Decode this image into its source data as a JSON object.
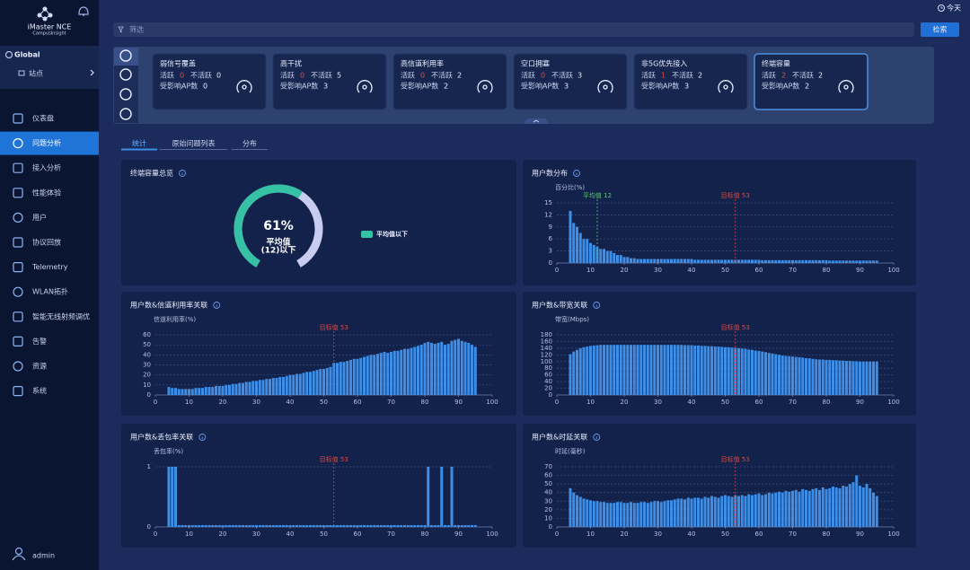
{
  "sidebar": {
    "brand": "iMaster NCE",
    "sub": "CampusInsight",
    "scope": "Global",
    "site": "站点",
    "menu": [
      "仪表盘",
      "问题分析",
      "接入分析",
      "性能体验",
      "用户",
      "协议回放",
      "Telemetry",
      "WLAN拓扑",
      "智能无线射频调优",
      "告警",
      "资源",
      "系统"
    ],
    "user": "admin"
  },
  "topbar": {
    "date": "今天",
    "filter": "筛选",
    "search": "检索"
  },
  "cards": [
    {
      "title": "弱信号覆盖",
      "active_label": "活跃",
      "active": 0,
      "inactive_label": "不活跃",
      "inactive": 0,
      "ap_label": "受影响AP数",
      "ap": 0
    },
    {
      "title": "高干扰",
      "active_label": "活跃",
      "active": 0,
      "inactive_label": "不活跃",
      "inactive": 5,
      "ap_label": "受影响AP数",
      "ap": 3
    },
    {
      "title": "高信道利用率",
      "active_label": "活跃",
      "active": 0,
      "inactive_label": "不活跃",
      "inactive": 2,
      "ap_label": "受影响AP数",
      "ap": 2
    },
    {
      "title": "空口拥塞",
      "active_label": "活跃",
      "active": 0,
      "inactive_label": "不活跃",
      "inactive": 3,
      "ap_label": "受影响AP数",
      "ap": 3
    },
    {
      "title": "非5G优先接入",
      "active_label": "活跃",
      "active": 1,
      "inactive_label": "不活跃",
      "inactive": 2,
      "ap_label": "受影响AP数",
      "ap": 3
    },
    {
      "title": "终端容量",
      "active_label": "活跃",
      "active": 2,
      "inactive_label": "不活跃",
      "inactive": 2,
      "ap_label": "受影响AP数",
      "ap": 2
    }
  ],
  "tabs": [
    "统计",
    "原始问题列表",
    "分布"
  ],
  "chart_data": [
    {
      "type": "donut",
      "title": "终端容量总览",
      "series": [
        {
          "name": "平均值以下",
          "color": "#35c2a4",
          "values": [
            61
          ],
          "value_labels": [
            "61%"
          ]
        }
      ],
      "annotations": [
        "平均值",
        "(12)以下"
      ]
    },
    {
      "type": "bar",
      "title": "用户数分布",
      "ylabel": "百分比(%)",
      "color": "#3d8ee6",
      "x": [
        4,
        5,
        6,
        7,
        8,
        9,
        10,
        11,
        12,
        13,
        14,
        15,
        16,
        17,
        18,
        19,
        20,
        21,
        22,
        23,
        24,
        25,
        26,
        27,
        28,
        29,
        30,
        31,
        32,
        33,
        34,
        35,
        36,
        37,
        38,
        39,
        40,
        41,
        42,
        43,
        44,
        45,
        46,
        47,
        48,
        49,
        50,
        51,
        52,
        53,
        54,
        55,
        56,
        57,
        58,
        59,
        60,
        61,
        62,
        63,
        64,
        65,
        66,
        67,
        68,
        69,
        70,
        71,
        72,
        73,
        74,
        75,
        76,
        77,
        78,
        79,
        80,
        81,
        82,
        83,
        84,
        85,
        86,
        87,
        88,
        89,
        90,
        91,
        92,
        93,
        94,
        95
      ],
      "values": [
        13,
        10,
        9,
        7.5,
        6,
        6,
        5,
        4.5,
        4,
        3.5,
        3.5,
        3,
        3,
        2.5,
        2,
        2,
        1.5,
        1.5,
        1.2,
        1.2,
        1,
        1,
        1,
        1,
        1,
        1,
        1,
        1,
        1,
        1,
        1,
        1,
        1,
        1,
        1,
        1,
        1,
        0.8,
        0.8,
        0.8,
        0.8,
        0.8,
        0.8,
        0.8,
        0.8,
        0.8,
        0.8,
        0.8,
        0.8,
        0.8,
        0.8,
        0.8,
        0.8,
        0.8,
        0.8,
        0.8,
        0.8,
        0.7,
        0.7,
        0.7,
        0.7,
        0.7,
        0.7,
        0.7,
        0.7,
        0.7,
        0.7,
        0.7,
        0.7,
        0.7,
        0.7,
        0.7,
        0.7,
        0.7,
        0.7,
        0.7,
        0.7,
        0.6,
        0.6,
        0.6,
        0.6,
        0.6,
        0.6,
        0.6,
        0.6,
        0.6,
        0.6,
        0.6,
        0.6,
        0.6,
        0.6,
        0.6
      ],
      "xlim": [
        0,
        100
      ],
      "xticks": [
        0,
        10,
        20,
        30,
        40,
        50,
        60,
        70,
        80,
        90,
        100
      ],
      "ylim": [
        0,
        15
      ],
      "yticks": [
        0,
        3,
        6,
        9,
        12,
        15
      ],
      "grid": true,
      "annotations": [
        {
          "x": 12,
          "text": "平均值 12",
          "color": "#5cc96b"
        },
        {
          "x": 53,
          "text": "目标值 53",
          "color": "#e0473e"
        }
      ]
    },
    {
      "type": "bar",
      "title": "用户数&信道利用率关联",
      "ylabel": "信道利用率(%)",
      "color": "#3d8ee6",
      "x": [
        4,
        5,
        6,
        7,
        8,
        9,
        10,
        11,
        12,
        13,
        14,
        15,
        16,
        17,
        18,
        19,
        20,
        21,
        22,
        23,
        24,
        25,
        26,
        27,
        28,
        29,
        30,
        31,
        32,
        33,
        34,
        35,
        36,
        37,
        38,
        39,
        40,
        41,
        42,
        43,
        44,
        45,
        46,
        47,
        48,
        49,
        50,
        51,
        52,
        53,
        54,
        55,
        56,
        57,
        58,
        59,
        60,
        61,
        62,
        63,
        64,
        65,
        66,
        67,
        68,
        69,
        70,
        71,
        72,
        73,
        74,
        75,
        76,
        77,
        78,
        79,
        80,
        81,
        82,
        83,
        84,
        85,
        86,
        87,
        88,
        89,
        90,
        91,
        92,
        93,
        94,
        95
      ],
      "values": [
        8,
        7,
        7,
        6,
        6,
        6,
        6,
        6,
        7,
        7,
        7,
        8,
        8,
        8,
        9,
        9,
        9,
        10,
        10,
        11,
        11,
        12,
        12,
        13,
        13,
        14,
        14,
        15,
        15,
        16,
        16,
        17,
        17,
        18,
        18,
        19,
        20,
        20,
        21,
        21,
        22,
        23,
        23,
        24,
        25,
        26,
        26,
        27,
        28,
        32,
        32,
        33,
        33,
        34,
        35,
        36,
        36,
        37,
        38,
        39,
        40,
        40,
        41,
        42,
        43,
        42,
        43,
        44,
        44,
        45,
        46,
        46,
        47,
        48,
        49,
        50,
        52,
        53,
        52,
        51,
        52,
        53,
        50,
        51,
        54,
        55,
        56,
        54,
        53,
        52,
        50,
        48
      ],
      "xlim": [
        0,
        100
      ],
      "xticks": [
        0,
        10,
        20,
        30,
        40,
        50,
        60,
        70,
        80,
        90,
        100
      ],
      "ylim": [
        0,
        60
      ],
      "yticks": [
        0,
        10,
        20,
        30,
        40,
        50,
        60
      ],
      "grid": true,
      "annotations": [
        {
          "x": 53,
          "text": "目标值 53",
          "color": "#e0473e"
        }
      ]
    },
    {
      "type": "bar",
      "title": "用户数&带宽关联",
      "ylabel": "带宽(Mbps)",
      "color": "#3d8ee6",
      "x": [
        4,
        5,
        6,
        7,
        8,
        9,
        10,
        11,
        12,
        13,
        14,
        15,
        16,
        17,
        18,
        19,
        20,
        21,
        22,
        23,
        24,
        25,
        26,
        27,
        28,
        29,
        30,
        31,
        32,
        33,
        34,
        35,
        36,
        37,
        38,
        39,
        40,
        41,
        42,
        43,
        44,
        45,
        46,
        47,
        48,
        49,
        50,
        51,
        52,
        53,
        54,
        55,
        56,
        57,
        58,
        59,
        60,
        61,
        62,
        63,
        64,
        65,
        66,
        67,
        68,
        69,
        70,
        71,
        72,
        73,
        74,
        75,
        76,
        77,
        78,
        79,
        80,
        81,
        82,
        83,
        84,
        85,
        86,
        87,
        88,
        89,
        90,
        91,
        92,
        93,
        94,
        95
      ],
      "values": [
        122,
        130,
        135,
        140,
        143,
        145,
        147,
        148,
        149,
        150,
        150,
        150,
        150,
        150,
        150,
        150,
        150,
        150,
        150,
        150,
        150,
        150,
        150,
        150,
        150,
        150,
        150,
        150,
        150,
        150,
        150,
        150,
        150,
        150,
        149,
        149,
        149,
        148,
        148,
        147,
        147,
        146,
        146,
        145,
        145,
        144,
        143,
        143,
        142,
        141,
        140,
        139,
        138,
        136,
        135,
        133,
        132,
        130,
        128,
        126,
        124,
        122,
        120,
        118,
        117,
        116,
        115,
        114,
        113,
        112,
        110,
        110,
        108,
        107,
        106,
        106,
        105,
        105,
        104,
        104,
        103,
        103,
        102,
        102,
        101,
        101,
        100,
        100,
        100,
        100,
        100,
        100
      ],
      "xlim": [
        0,
        100
      ],
      "xticks": [
        0,
        10,
        20,
        30,
        40,
        50,
        60,
        70,
        80,
        90,
        100
      ],
      "ylim": [
        0,
        180
      ],
      "yticks": [
        0,
        20,
        40,
        60,
        80,
        100,
        120,
        140,
        160,
        180
      ],
      "grid": true,
      "annotations": [
        {
          "x": 53,
          "text": "目标值 53",
          "color": "#e0473e"
        }
      ]
    },
    {
      "type": "bar",
      "title": "用户数&丢包率关联",
      "ylabel": "丢包率(%)",
      "color": "#3d8ee6",
      "x": [
        4,
        5,
        6,
        7,
        8,
        9,
        10,
        11,
        12,
        13,
        14,
        15,
        16,
        17,
        18,
        19,
        20,
        21,
        22,
        23,
        24,
        25,
        26,
        27,
        28,
        29,
        30,
        31,
        32,
        33,
        34,
        35,
        36,
        37,
        38,
        39,
        40,
        41,
        42,
        43,
        44,
        45,
        46,
        47,
        48,
        49,
        50,
        51,
        52,
        53,
        54,
        55,
        56,
        57,
        58,
        59,
        60,
        61,
        62,
        63,
        64,
        65,
        66,
        67,
        68,
        69,
        70,
        71,
        72,
        73,
        74,
        75,
        76,
        77,
        78,
        79,
        80,
        81,
        82,
        83,
        84,
        85,
        86,
        87,
        88,
        89,
        90,
        91,
        92,
        93,
        94,
        95
      ],
      "values": [
        1,
        1,
        1,
        0.03,
        0.03,
        0.03,
        0.03,
        0.03,
        0.03,
        0.03,
        0.03,
        0.03,
        0.03,
        0.03,
        0.03,
        0.03,
        0.03,
        0.03,
        0.03,
        0.03,
        0.03,
        0.03,
        0.03,
        0.03,
        0.03,
        0.03,
        0.03,
        0.03,
        0.03,
        0.03,
        0.03,
        0.03,
        0.03,
        0.03,
        0.03,
        0.03,
        0.03,
        0.03,
        0.03,
        0.03,
        0.03,
        0.03,
        0.03,
        0.03,
        0.03,
        0.03,
        0.03,
        0.03,
        0.03,
        0.03,
        0.03,
        0.03,
        0.03,
        0.03,
        0.03,
        0.03,
        0.03,
        0.03,
        0.03,
        0.03,
        0.03,
        0.03,
        0.03,
        0.03,
        0.03,
        0.03,
        0.03,
        0.03,
        0.03,
        0.03,
        0.03,
        0.03,
        0.03,
        0.03,
        0.03,
        0.03,
        0.03,
        1,
        0.03,
        0.03,
        0.03,
        1,
        0.03,
        0.03,
        1,
        0.03,
        0.03,
        0.03,
        0.03,
        0.03,
        0.03,
        0.03
      ],
      "xlim": [
        0,
        100
      ],
      "xticks": [
        0,
        10,
        20,
        30,
        40,
        50,
        60,
        70,
        80,
        90,
        100
      ],
      "ylim": [
        0,
        1
      ],
      "yticks": [
        0,
        1
      ],
      "grid": true,
      "annotations": [
        {
          "x": 53,
          "text": "目标值 53",
          "color": "#e0473e"
        }
      ]
    },
    {
      "type": "bar",
      "title": "用户数&时延关联",
      "ylabel": "时延(毫秒)",
      "color": "#3d8ee6",
      "x": [
        4,
        5,
        6,
        7,
        8,
        9,
        10,
        11,
        12,
        13,
        14,
        15,
        16,
        17,
        18,
        19,
        20,
        21,
        22,
        23,
        24,
        25,
        26,
        27,
        28,
        29,
        30,
        31,
        32,
        33,
        34,
        35,
        36,
        37,
        38,
        39,
        40,
        41,
        42,
        43,
        44,
        45,
        46,
        47,
        48,
        49,
        50,
        51,
        52,
        53,
        54,
        55,
        56,
        57,
        58,
        59,
        60,
        61,
        62,
        63,
        64,
        65,
        66,
        67,
        68,
        69,
        70,
        71,
        72,
        73,
        74,
        75,
        76,
        77,
        78,
        79,
        80,
        81,
        82,
        83,
        84,
        85,
        86,
        87,
        88,
        89,
        90,
        91,
        92,
        93,
        94,
        95
      ],
      "values": [
        45,
        40,
        37,
        35,
        33,
        32,
        31,
        30,
        30,
        29,
        29,
        28,
        28,
        28,
        29,
        29,
        28,
        28,
        29,
        28,
        28,
        29,
        29,
        28,
        29,
        30,
        30,
        29,
        30,
        31,
        31,
        32,
        33,
        33,
        32,
        34,
        33,
        34,
        34,
        33,
        35,
        34,
        36,
        35,
        34,
        36,
        37,
        36,
        35,
        37,
        36,
        37,
        36,
        38,
        37,
        38,
        39,
        37,
        38,
        40,
        39,
        40,
        41,
        40,
        42,
        41,
        42,
        43,
        41,
        44,
        43,
        42,
        44,
        45,
        43,
        46,
        44,
        45,
        47,
        46,
        45,
        48,
        47,
        50,
        52,
        60,
        48,
        46,
        50,
        45,
        40,
        36
      ],
      "xlim": [
        0,
        100
      ],
      "xticks": [
        0,
        10,
        20,
        30,
        40,
        50,
        60,
        70,
        80,
        90,
        100
      ],
      "ylim": [
        0,
        70
      ],
      "yticks": [
        0,
        10,
        20,
        30,
        40,
        50,
        60,
        70
      ],
      "grid": true,
      "annotations": [
        {
          "x": 53,
          "text": "目标值 53",
          "color": "#e0473e"
        }
      ]
    }
  ]
}
